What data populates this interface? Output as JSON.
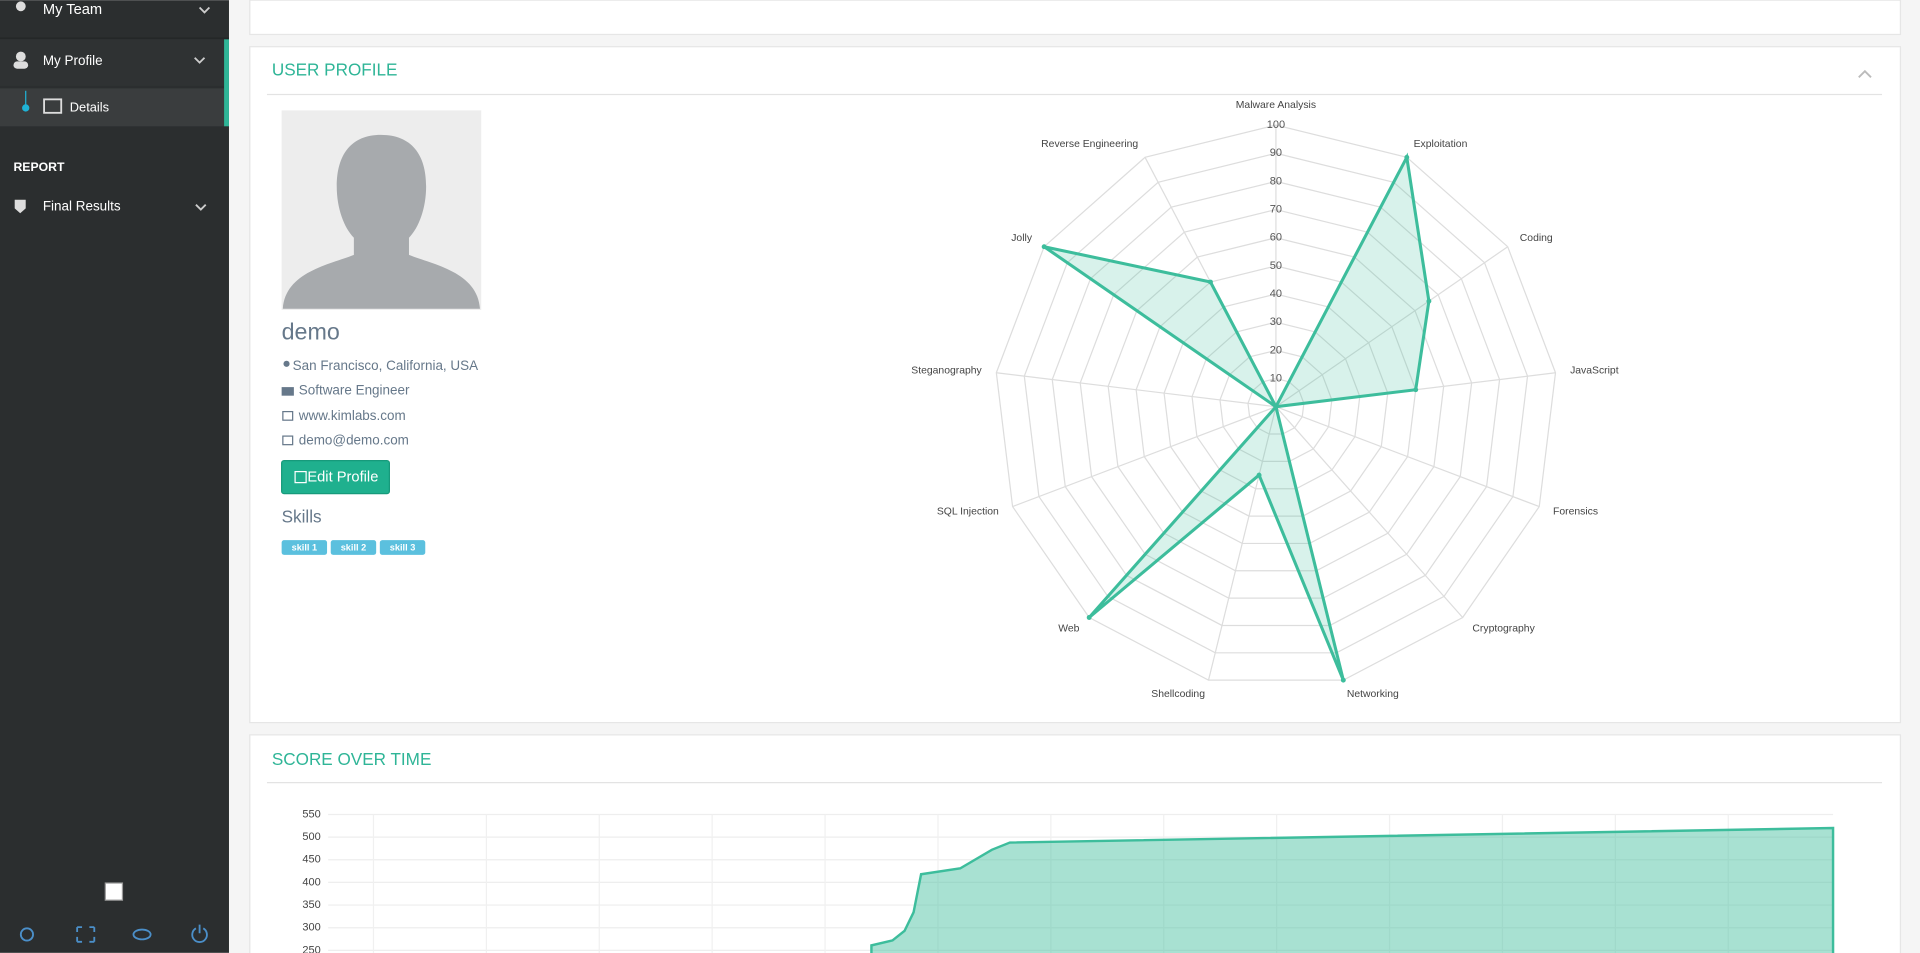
{
  "sidebar": {
    "items": [
      "My Team",
      "My Profile",
      "Details"
    ],
    "section": "REPORT",
    "report_item": "Final Results"
  },
  "profile": {
    "panel_title": "USER PROFILE",
    "name": "demo",
    "location": "San Francisco, California, USA",
    "job": "Software Engineer",
    "website": "www.kimlabs.com",
    "email": "demo@demo.com",
    "button": "Edit Profile",
    "skills_title": "Skills",
    "skills": [
      "skill 1",
      "skill 2",
      "skill 3"
    ]
  },
  "chart_data": [
    {
      "type": "radar",
      "categories": [
        "Malware Analysis",
        "Exploitation",
        "Coding",
        "JavaScript",
        "Forensics",
        "Cryptography",
        "Networking",
        "Shellcoding",
        "Web",
        "SQL Injection",
        "Steganography",
        "Jolly",
        "Reverse Engineering"
      ],
      "values": [
        0,
        100,
        66,
        50,
        0,
        0,
        100,
        25,
        100,
        0,
        0,
        100,
        50
      ],
      "color": "#3dbd9c",
      "rlim": [
        0,
        100
      ],
      "rticks": [
        10,
        20,
        30,
        40,
        50,
        60,
        70,
        80,
        90,
        100
      ],
      "grid": true
    },
    {
      "type": "area",
      "title": "SCORE OVER TIME",
      "x": [
        36.1,
        37.5,
        38.3,
        38.9,
        39.4,
        42,
        44.1,
        45.3,
        100
      ],
      "values": [
        261,
        272,
        293,
        334,
        418,
        431,
        472,
        488,
        520
      ],
      "xlim": [
        0,
        100
      ],
      "ylim": [
        250,
        550
      ],
      "yticks": [
        250,
        300,
        350,
        400,
        450,
        500,
        550
      ],
      "color": "#3dbd9c",
      "grid": true
    }
  ]
}
